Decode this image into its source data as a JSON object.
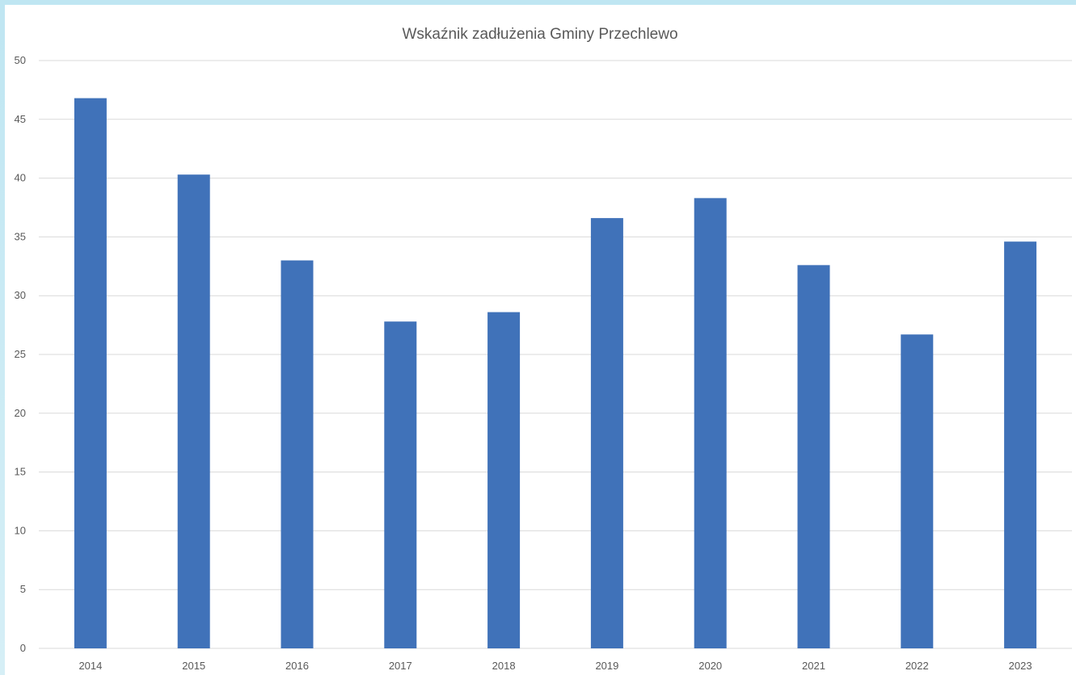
{
  "chart_data": {
    "type": "bar",
    "title": "Wskaźnik zadłużenia Gminy Przechlewo",
    "xlabel": "",
    "ylabel": "",
    "categories": [
      "2014",
      "2015",
      "2016",
      "2017",
      "2018",
      "2019",
      "2020",
      "2021",
      "2022",
      "2023"
    ],
    "values": [
      46.8,
      40.3,
      33.0,
      27.8,
      28.6,
      36.6,
      38.3,
      32.6,
      26.7,
      34.6
    ],
    "ylim": [
      0,
      50
    ],
    "yticks": [
      0,
      5,
      10,
      15,
      20,
      25,
      30,
      35,
      40,
      45,
      50
    ],
    "grid": true,
    "legend": "none",
    "bar_color": "#4072b9",
    "grid_color": "#d9d9d9",
    "text_color": "#595959",
    "frame_color": "#c8e9f3"
  }
}
